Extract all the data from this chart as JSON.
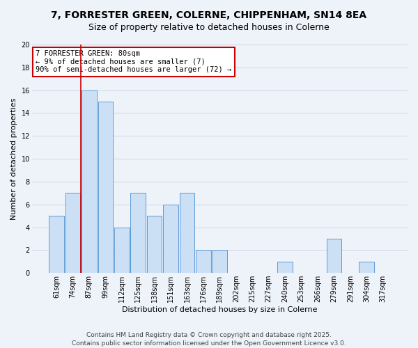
{
  "title": "7, FORRESTER GREEN, COLERNE, CHIPPENHAM, SN14 8EA",
  "subtitle": "Size of property relative to detached houses in Colerne",
  "xlabel": "Distribution of detached houses by size in Colerne",
  "ylabel": "Number of detached properties",
  "bar_labels": [
    "61sqm",
    "74sqm",
    "87sqm",
    "99sqm",
    "112sqm",
    "125sqm",
    "138sqm",
    "151sqm",
    "163sqm",
    "176sqm",
    "189sqm",
    "202sqm",
    "215sqm",
    "227sqm",
    "240sqm",
    "253sqm",
    "266sqm",
    "279sqm",
    "291sqm",
    "304sqm",
    "317sqm"
  ],
  "bar_values": [
    5,
    7,
    16,
    15,
    4,
    7,
    5,
    6,
    7,
    2,
    2,
    0,
    0,
    0,
    1,
    0,
    0,
    3,
    0,
    1,
    0
  ],
  "bar_color": "#cce0f5",
  "bar_edge_color": "#5b9bd5",
  "background_color": "#eef2f9",
  "grid_color": "#c8d4e8",
  "annotation_line1": "7 FORRESTER GREEN: 80sqm",
  "annotation_line2": "← 9% of detached houses are smaller (7)",
  "annotation_line3": "90% of semi-detached houses are larger (72) →",
  "annotation_box_edge_color": "#cc0000",
  "red_line_bar_index": 2,
  "ylim": [
    0,
    20
  ],
  "yticks": [
    0,
    2,
    4,
    6,
    8,
    10,
    12,
    14,
    16,
    18,
    20
  ],
  "footer_line1": "Contains HM Land Registry data © Crown copyright and database right 2025.",
  "footer_line2": "Contains public sector information licensed under the Open Government Licence v3.0.",
  "title_fontsize": 10,
  "subtitle_fontsize": 9,
  "axis_label_fontsize": 8,
  "tick_fontsize": 7,
  "annotation_fontsize": 7.5,
  "footer_fontsize": 6.5
}
